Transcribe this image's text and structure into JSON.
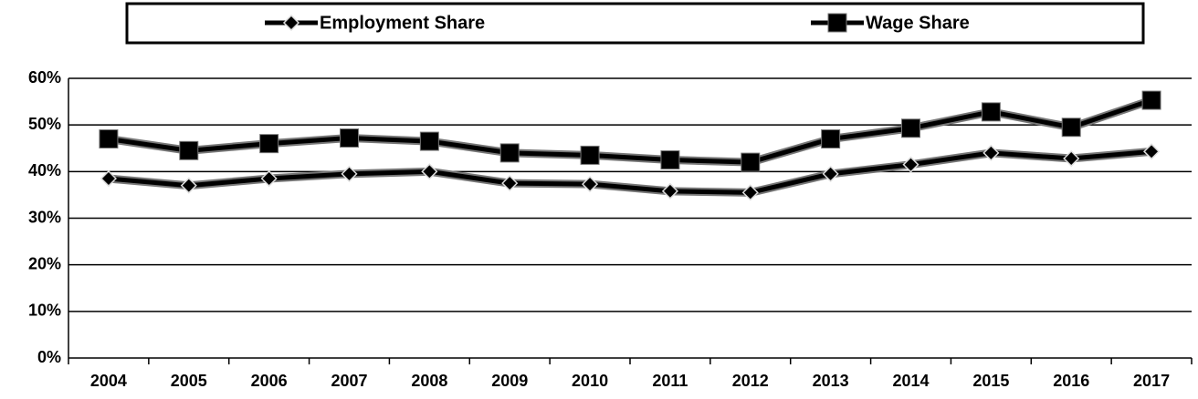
{
  "chart_data": {
    "type": "line",
    "categories": [
      "2004",
      "2005",
      "2006",
      "2007",
      "2008",
      "2009",
      "2010",
      "2011",
      "2012",
      "2013",
      "2014",
      "2015",
      "2016",
      "2017"
    ],
    "series": [
      {
        "name": "Employment Share",
        "color": "#000000",
        "marker": "diamond",
        "values": [
          38.5,
          37,
          38.5,
          39.5,
          40,
          37.5,
          37.3,
          35.8,
          35.5,
          39.5,
          41.5,
          44,
          42.8,
          44.3
        ]
      },
      {
        "name": "Wage Share",
        "color": "#000000",
        "marker": "square",
        "values": [
          47,
          44.5,
          46,
          47.2,
          46.5,
          44,
          43.5,
          42.5,
          42,
          47,
          49.3,
          52.8,
          49.5,
          55.3
        ]
      }
    ],
    "ylim": [
      0,
      60
    ],
    "yticks": [
      {
        "value": 0,
        "label": "0%"
      },
      {
        "value": 10,
        "label": "10%"
      },
      {
        "value": 20,
        "label": "20%"
      },
      {
        "value": 30,
        "label": "30%"
      },
      {
        "value": 40,
        "label": "40%"
      },
      {
        "value": 50,
        "label": "50%"
      },
      {
        "value": 60,
        "label": "60%"
      }
    ],
    "grid": true,
    "legend": "top"
  }
}
